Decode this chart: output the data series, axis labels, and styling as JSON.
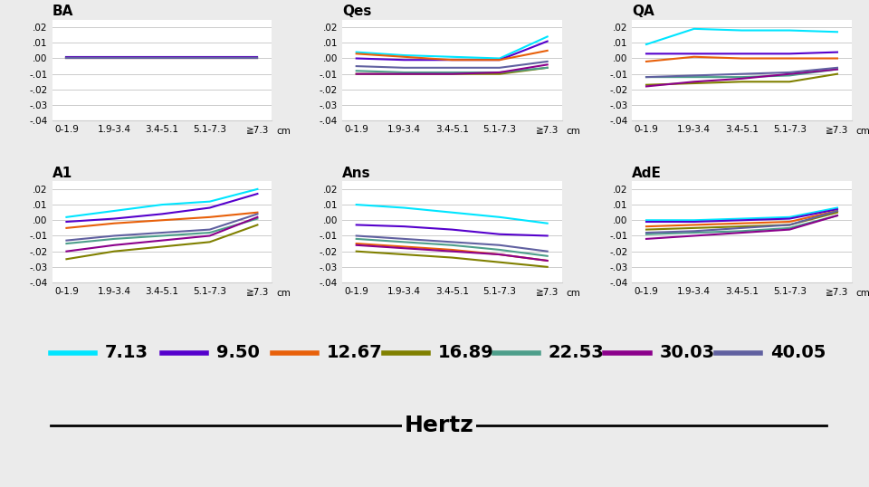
{
  "x_labels": [
    "0-1.9",
    "1.9-3.4",
    "3.4-5.1",
    "5.1-7.3",
    "≧7.3"
  ],
  "x_label_cm": "cm",
  "frequencies": [
    "7.13",
    "9.50",
    "12.67",
    "16.89",
    "22.53",
    "30.03",
    "40.05"
  ],
  "colors": [
    "#00e5ff",
    "#5500cc",
    "#e8600a",
    "#808000",
    "#4d9e8a",
    "#8b008b",
    "#6060a0"
  ],
  "panels": {
    "BA": {
      "data": [
        [
          0.001,
          0.001,
          0.001,
          0.001,
          0.001
        ],
        [
          0.001,
          0.001,
          0.001,
          0.001,
          0.001
        ],
        [
          0.0,
          0.0,
          0.0,
          0.0,
          0.0
        ],
        [
          0.0,
          0.0,
          0.0,
          0.0,
          0.0
        ],
        [
          0.0,
          0.0,
          0.0,
          0.0,
          0.0
        ],
        [
          0.0,
          0.0,
          0.0,
          0.0,
          0.0
        ],
        [
          0.0,
          0.0,
          0.0,
          0.0,
          0.0
        ]
      ]
    },
    "Qes": {
      "data": [
        [
          0.004,
          0.002,
          0.001,
          0.0,
          0.014
        ],
        [
          0.0,
          -0.001,
          -0.001,
          -0.001,
          0.011
        ],
        [
          0.003,
          0.001,
          -0.001,
          -0.001,
          0.005
        ],
        [
          -0.01,
          -0.01,
          -0.01,
          -0.01,
          -0.006
        ],
        [
          -0.008,
          -0.009,
          -0.009,
          -0.009,
          -0.006
        ],
        [
          -0.01,
          -0.01,
          -0.01,
          -0.009,
          -0.004
        ],
        [
          -0.005,
          -0.006,
          -0.006,
          -0.006,
          -0.002
        ]
      ]
    },
    "QA": {
      "data": [
        [
          0.009,
          0.019,
          0.018,
          0.018,
          0.017
        ],
        [
          0.003,
          0.003,
          0.003,
          0.003,
          0.004
        ],
        [
          -0.002,
          0.001,
          0.0,
          0.0,
          0.0
        ],
        [
          -0.017,
          -0.016,
          -0.015,
          -0.015,
          -0.01
        ],
        [
          -0.012,
          -0.012,
          -0.012,
          -0.011,
          -0.007
        ],
        [
          -0.018,
          -0.015,
          -0.013,
          -0.01,
          -0.007
        ],
        [
          -0.012,
          -0.011,
          -0.01,
          -0.009,
          -0.006
        ]
      ]
    },
    "A1": {
      "data": [
        [
          0.002,
          0.006,
          0.01,
          0.012,
          0.02
        ],
        [
          -0.001,
          0.001,
          0.004,
          0.008,
          0.017
        ],
        [
          -0.005,
          -0.002,
          0.0,
          0.002,
          0.005
        ],
        [
          -0.025,
          -0.02,
          -0.017,
          -0.014,
          -0.003
        ],
        [
          -0.015,
          -0.012,
          -0.01,
          -0.008,
          0.001
        ],
        [
          -0.02,
          -0.016,
          -0.013,
          -0.01,
          0.002
        ],
        [
          -0.013,
          -0.01,
          -0.008,
          -0.006,
          0.004
        ]
      ]
    },
    "Ans": {
      "data": [
        [
          0.01,
          0.008,
          0.005,
          0.002,
          -0.002
        ],
        [
          -0.003,
          -0.004,
          -0.006,
          -0.009,
          -0.01
        ],
        [
          -0.015,
          -0.017,
          -0.019,
          -0.022,
          -0.026
        ],
        [
          -0.02,
          -0.022,
          -0.024,
          -0.027,
          -0.03
        ],
        [
          -0.012,
          -0.014,
          -0.016,
          -0.019,
          -0.023
        ],
        [
          -0.016,
          -0.018,
          -0.02,
          -0.022,
          -0.026
        ],
        [
          -0.01,
          -0.012,
          -0.014,
          -0.016,
          -0.02
        ]
      ]
    },
    "AdE": {
      "data": [
        [
          0.0,
          0.0,
          0.001,
          0.002,
          0.008
        ],
        [
          -0.001,
          -0.001,
          0.0,
          0.001,
          0.007
        ],
        [
          -0.004,
          -0.003,
          -0.002,
          -0.001,
          0.006
        ],
        [
          -0.006,
          -0.005,
          -0.004,
          -0.003,
          0.005
        ],
        [
          -0.009,
          -0.008,
          -0.007,
          -0.005,
          0.003
        ],
        [
          -0.012,
          -0.01,
          -0.008,
          -0.006,
          0.003
        ],
        [
          -0.008,
          -0.007,
          -0.005,
          -0.003,
          0.006
        ]
      ]
    }
  },
  "ylim": [
    -0.04,
    0.025
  ],
  "yticks": [
    0.02,
    0.01,
    0.0,
    -0.01,
    -0.02,
    -0.03,
    -0.04
  ],
  "ytick_labels": [
    ".02",
    ".01",
    ".00",
    "-.01",
    "-.02",
    "-.03",
    "-.04"
  ],
  "bg_color": "#ebebeb",
  "plot_bg": "#ffffff",
  "line_width": 1.5,
  "legend_hertz_label": "Hertz"
}
